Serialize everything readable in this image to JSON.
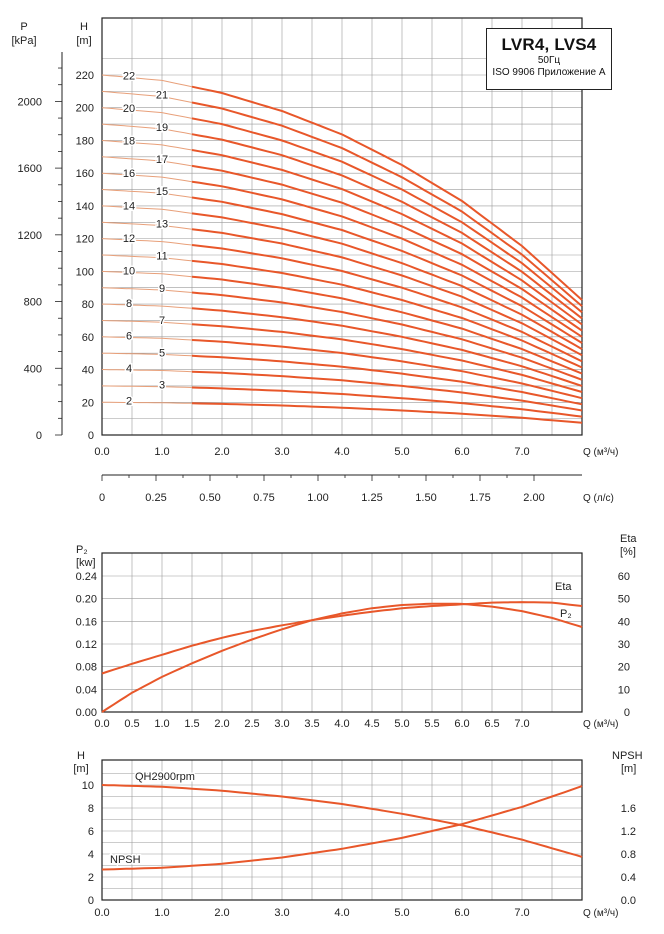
{
  "legend": {
    "title": "LVR4, LVS4",
    "frequency": "50Гц",
    "standard": "ISO 9906 Приложение А"
  },
  "chart_data": [
    {
      "type": "line",
      "name": "head-curves",
      "y_left_title": "P",
      "y_left_unit": "[kPa]",
      "y_left_ticks": [
        "0",
        "400",
        "800",
        "1200",
        "1600",
        "2000"
      ],
      "y_right_title": "H",
      "y_right_unit": "[m]",
      "y_ticks": [
        "0",
        "20",
        "40",
        "60",
        "80",
        "100",
        "120",
        "140",
        "160",
        "180",
        "200",
        "220"
      ],
      "ylim": [
        0,
        230
      ],
      "x_ticks": [
        "0.0",
        "1.0",
        "2.0",
        "3.0",
        "4.0",
        "5.0",
        "6.0",
        "7.0"
      ],
      "x_label": "Q (м³/ч)",
      "x2_ticks": [
        "0",
        "0.25",
        "0.50",
        "0.75",
        "1.00",
        "1.25",
        "1.50",
        "1.75",
        "2.00"
      ],
      "x2_label": "Q (л/с)",
      "xlim": [
        0,
        8
      ],
      "stage_labels": [
        "2",
        "3",
        "4",
        "5",
        "6",
        "7",
        "8",
        "9",
        "10",
        "11",
        "12",
        "13",
        "14",
        "15",
        "16",
        "17",
        "18",
        "19",
        "20",
        "21",
        "22"
      ],
      "base_curve": {
        "x": [
          0,
          1,
          2,
          3,
          4,
          5,
          6,
          7,
          8
        ],
        "y_per_stage": [
          10.0,
          9.85,
          9.5,
          9.0,
          8.35,
          7.5,
          6.5,
          5.25,
          3.75
        ]
      },
      "colors": {
        "curve": "#e8572a",
        "label_line": "#e8a07a"
      }
    },
    {
      "type": "line",
      "name": "power-efficiency",
      "y_left_title": "P₂",
      "y_left_unit": "[kw]",
      "y_ticks": [
        "0.00",
        "0.04",
        "0.08",
        "0.12",
        "0.16",
        "0.20",
        "0.24"
      ],
      "y_right_title": "Eta",
      "y_right_unit": "[%]",
      "y_right_ticks": [
        "0",
        "10",
        "20",
        "30",
        "40",
        "50",
        "60"
      ],
      "x_ticks": [
        "0.0",
        "0.5",
        "1.0",
        "1.5",
        "2.0",
        "2.5",
        "3.0",
        "3.5",
        "4.0",
        "4.5",
        "5.0",
        "5.5",
        "6.0",
        "6.5",
        "7.0"
      ],
      "x_label": "Q (м³/ч)",
      "xlim": [
        0,
        8
      ],
      "series": [
        {
          "name": "Eta",
          "x": [
            0,
            0.5,
            1,
            1.5,
            2,
            2.5,
            3,
            3.5,
            4,
            4.5,
            5,
            5.5,
            6,
            6.5,
            7,
            7.5,
            8
          ],
          "y": [
            0,
            8.5,
            15.5,
            21.5,
            27,
            32,
            36.5,
            40.5,
            43.5,
            45.8,
            47.2,
            47.8,
            47.7,
            46.5,
            44.5,
            41.5,
            37.5
          ]
        },
        {
          "name": "P₂",
          "x": [
            0,
            0.5,
            1,
            1.5,
            2,
            2.5,
            3,
            3.5,
            4,
            4.5,
            5,
            5.5,
            6,
            6.5,
            7,
            7.5,
            8
          ],
          "y": [
            0.068,
            0.085,
            0.101,
            0.117,
            0.131,
            0.143,
            0.153,
            0.162,
            0.17,
            0.177,
            0.183,
            0.187,
            0.19,
            0.193,
            0.194,
            0.193,
            0.187
          ]
        }
      ]
    },
    {
      "type": "line",
      "name": "npsh",
      "y_left_title": "H",
      "y_left_unit": "[m]",
      "y_ticks": [
        "0",
        "2",
        "4",
        "6",
        "8",
        "10"
      ],
      "y_right_title": "NPSH",
      "y_right_unit": "[m]",
      "y_right_ticks": [
        "0.0",
        "0.4",
        "0.8",
        "1.2",
        "1.6"
      ],
      "x_ticks": [
        "0.0",
        "1.0",
        "2.0",
        "3.0",
        "4.0",
        "5.0",
        "6.0",
        "7.0"
      ],
      "x_label": "Q (м³/ч)",
      "xlim": [
        0,
        8
      ],
      "series": [
        {
          "name": "QH2900rpm",
          "x": [
            0,
            1,
            2,
            3,
            4,
            5,
            6,
            7,
            8
          ],
          "y": [
            10.0,
            9.85,
            9.5,
            9.0,
            8.35,
            7.5,
            6.5,
            5.25,
            3.75
          ]
        },
        {
          "name": "NPSH",
          "x": [
            0,
            1,
            2,
            3,
            4,
            5,
            6,
            7,
            8
          ],
          "y": [
            0.53,
            0.56,
            0.63,
            0.74,
            0.89,
            1.08,
            1.32,
            1.62,
            1.98
          ]
        }
      ]
    }
  ]
}
